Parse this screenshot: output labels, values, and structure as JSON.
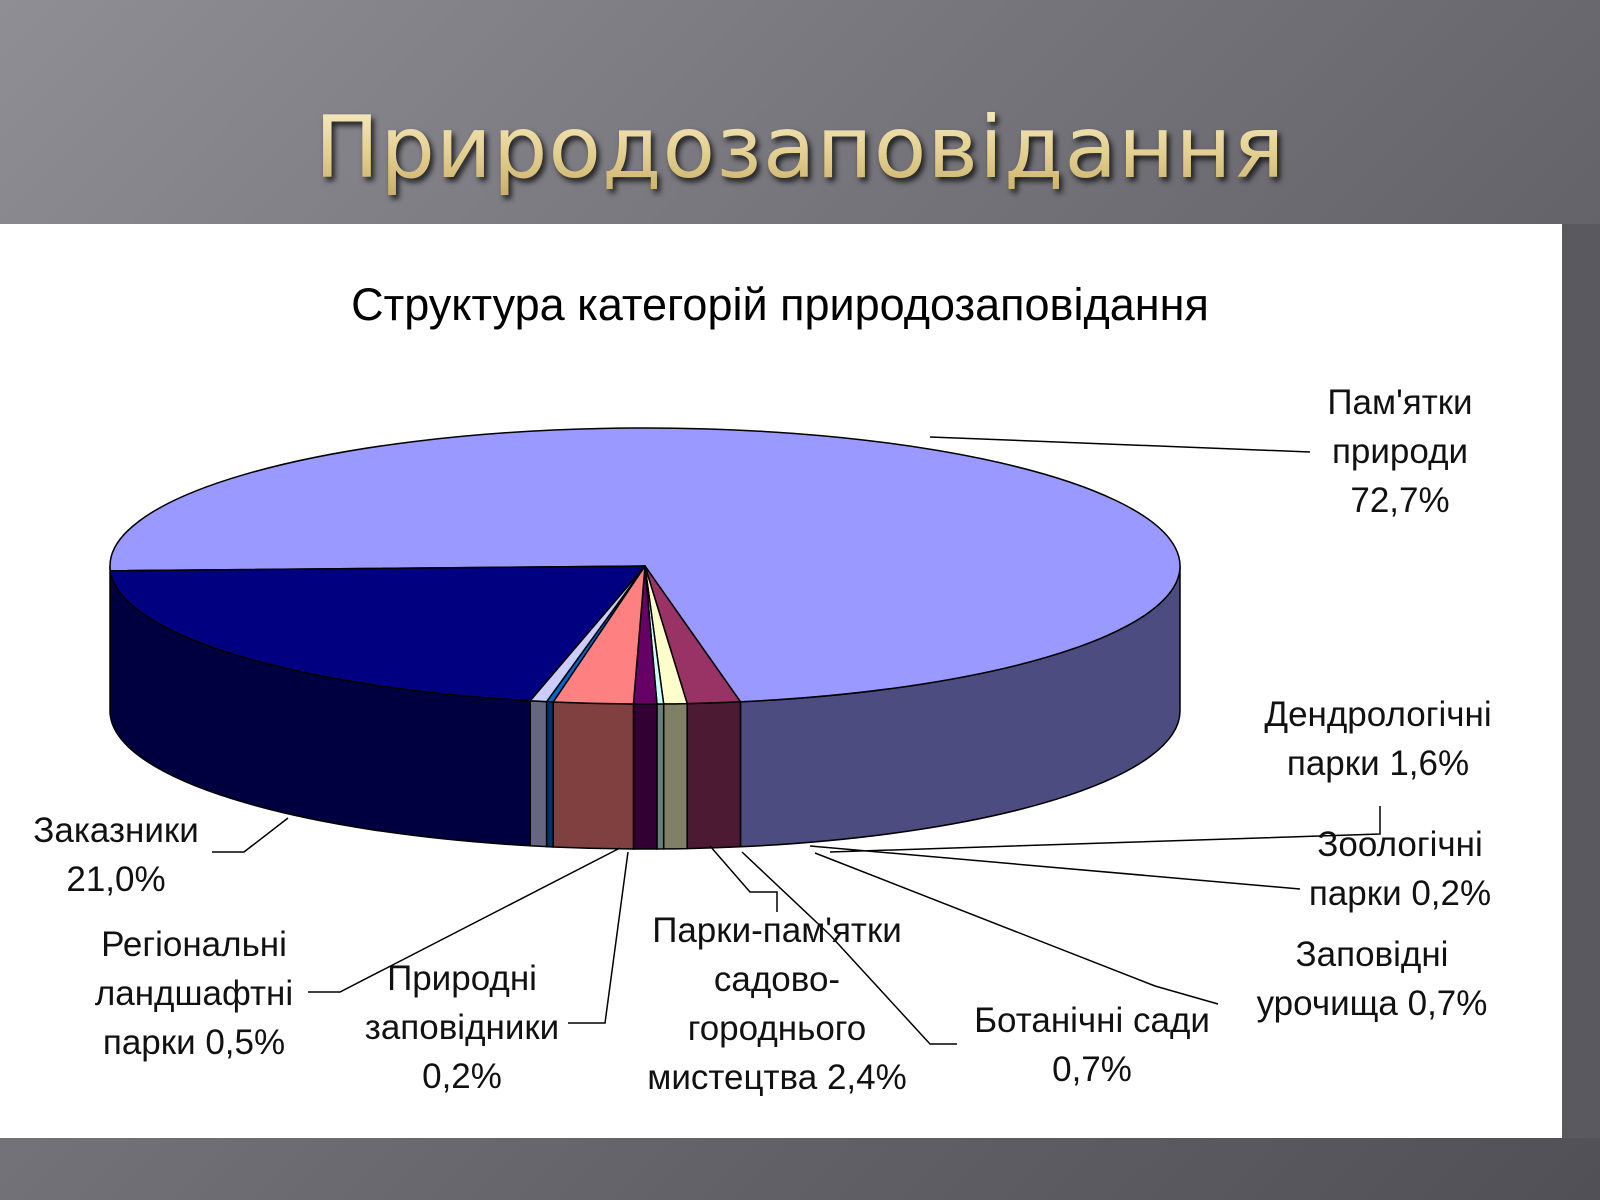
{
  "slide": {
    "title": "Природозаповідання"
  },
  "chart_data": {
    "type": "pie",
    "title": "Структура категорій природозаповідання",
    "slices": [
      {
        "name": "Пам'ятки природи",
        "value": 72.7,
        "label_lines": [
          "Пам'ятки",
          "природи",
          "72,7%"
        ],
        "color": "#9999ff",
        "side_color": "#4c4c80"
      },
      {
        "name": "Дендрологічні парки",
        "value": 1.6,
        "label_lines": [
          "Дендрологічні",
          "парки 1,6%"
        ],
        "color": "#993366",
        "side_color": "#4c1a33"
      },
      {
        "name": "Заповідні урочища",
        "value": 0.7,
        "label_lines": [
          "Заповідні",
          "урочища 0,7%"
        ],
        "color": "#ffffcc",
        "side_color": "#808066"
      },
      {
        "name": "Зоологічні парки",
        "value": 0.2,
        "label_lines": [
          "Зоологічні",
          "парки 0,2%"
        ],
        "color": "#ccffff",
        "side_color": "#668080"
      },
      {
        "name": "Ботанічні сади",
        "value": 0.7,
        "label_lines": [
          "Ботанічні сади",
          "0,7%"
        ],
        "color": "#660066",
        "side_color": "#330033"
      },
      {
        "name": "Парки-пам'ятки садово-городнього мистецтва",
        "value": 2.4,
        "label_lines": [
          "Парки-пам'ятки",
          "садово-",
          "городнього",
          "мистецтва 2,4%"
        ],
        "color": "#ff8080",
        "side_color": "#804040"
      },
      {
        "name": "Природні заповідники",
        "value": 0.2,
        "label_lines": [
          "Природні",
          "заповідники",
          "0,2%"
        ],
        "color": "#0066cc",
        "side_color": "#003366"
      },
      {
        "name": "Регіональні ландшафтні парки",
        "value": 0.5,
        "label_lines": [
          "Регіональні",
          "ландшафтні",
          "парки 0,5%"
        ],
        "color": "#ccccff",
        "side_color": "#666680"
      },
      {
        "name": "Заказники",
        "value": 21.0,
        "label_lines": [
          "Заказники",
          "21,0%"
        ],
        "color": "#000080",
        "side_color": "#000040"
      }
    ]
  }
}
